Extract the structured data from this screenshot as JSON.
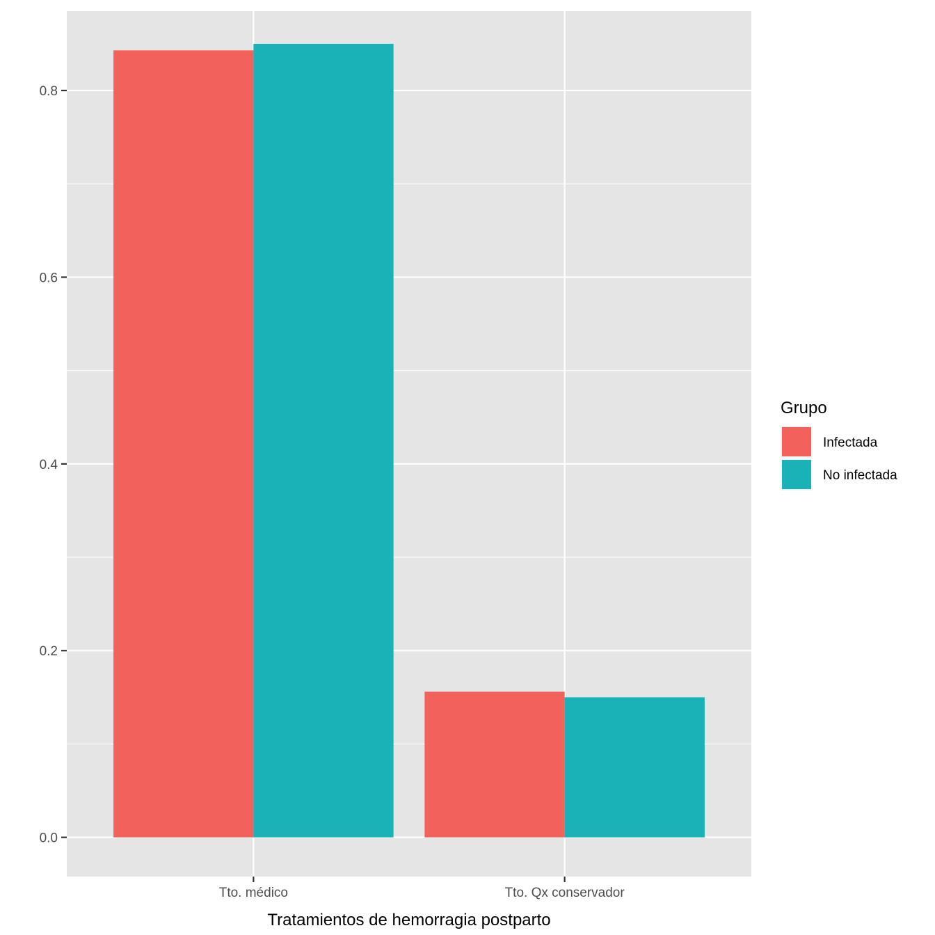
{
  "chart_data": {
    "type": "bar",
    "title": "",
    "xlabel": "Tratamientos de hemorragia postparto",
    "ylabel": "",
    "categories": [
      "Tto. médico",
      "Tto. Qx conservador"
    ],
    "series": [
      {
        "name": "Infectada",
        "color": "#F8766D",
        "values": [
          0.843,
          0.156
        ]
      },
      {
        "name": "No infectada",
        "color": "#00BFC4",
        "values": [
          0.85,
          0.15
        ]
      }
    ],
    "ylim": [
      -0.042,
      0.885
    ],
    "yticks": [
      0.0,
      0.2,
      0.4,
      0.6,
      0.8
    ],
    "ytick_labels": [
      "0.0",
      "0.2",
      "0.4",
      "0.6",
      "0.8"
    ],
    "grid": true,
    "legend": {
      "title": "Grupo",
      "position": "right"
    },
    "colors": {
      "panel": "#E5E5E5",
      "grid": "#FFFFFF",
      "bar_infectada": "#F3615D",
      "bar_no_infectada": "#19B3B7"
    }
  }
}
